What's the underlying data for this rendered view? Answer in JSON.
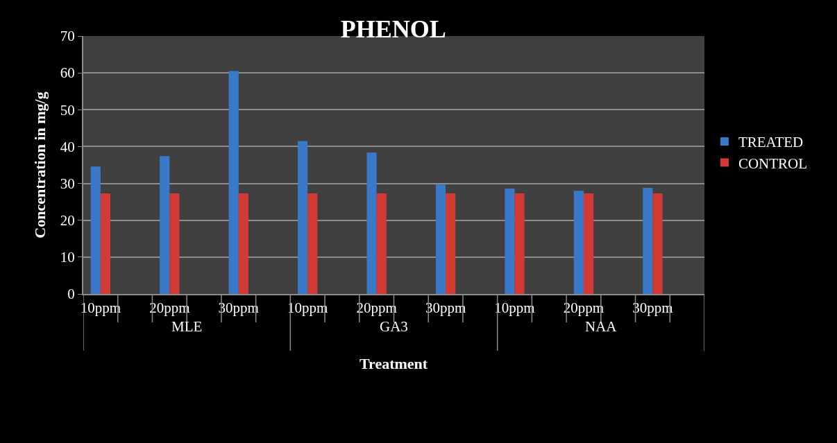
{
  "chart_data": {
    "type": "bar",
    "title": "PHENOL",
    "xlabel": "Treatment",
    "ylabel": "Concentration in mg/g",
    "categories": [
      "10ppm",
      null,
      "20ppm",
      null,
      "30ppm",
      null,
      "10ppm",
      null,
      "20ppm",
      null,
      "30ppm",
      null,
      "10ppm",
      null,
      "20ppm",
      null,
      "30ppm",
      null
    ],
    "annotations": [
      "MLE",
      "GA3",
      "NAA"
    ],
    "series": [
      {
        "name": "TREATED",
        "color": "#3a78c8",
        "values": [
          34.6,
          null,
          37.4,
          null,
          60.5,
          null,
          41.5,
          null,
          38.4,
          null,
          29.7,
          null,
          28.6,
          null,
          28.0,
          null,
          28.8,
          null
        ]
      },
      {
        "name": "CONTROL",
        "color": "#d23a36",
        "values": [
          27.3,
          null,
          27.3,
          null,
          27.3,
          null,
          27.3,
          null,
          27.3,
          null,
          27.3,
          null,
          27.3,
          null,
          27.3,
          null,
          27.3,
          null
        ]
      }
    ],
    "ylim": [
      0,
      70
    ],
    "yticks": [
      0,
      10,
      20,
      30,
      40,
      50,
      60,
      70
    ],
    "grid": "y",
    "legend": "right"
  }
}
